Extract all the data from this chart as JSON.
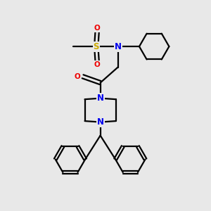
{
  "bg_color": "#e8e8e8",
  "atom_colors": {
    "C": "#000000",
    "N": "#0000ee",
    "O": "#ee0000",
    "S": "#ccaa00"
  },
  "bond_color": "#000000",
  "bond_width": 1.6,
  "figsize": [
    3.0,
    3.0
  ],
  "dpi": 100,
  "xlim": [
    0,
    10
  ],
  "ylim": [
    0,
    10
  ],
  "font_size": 7.5
}
